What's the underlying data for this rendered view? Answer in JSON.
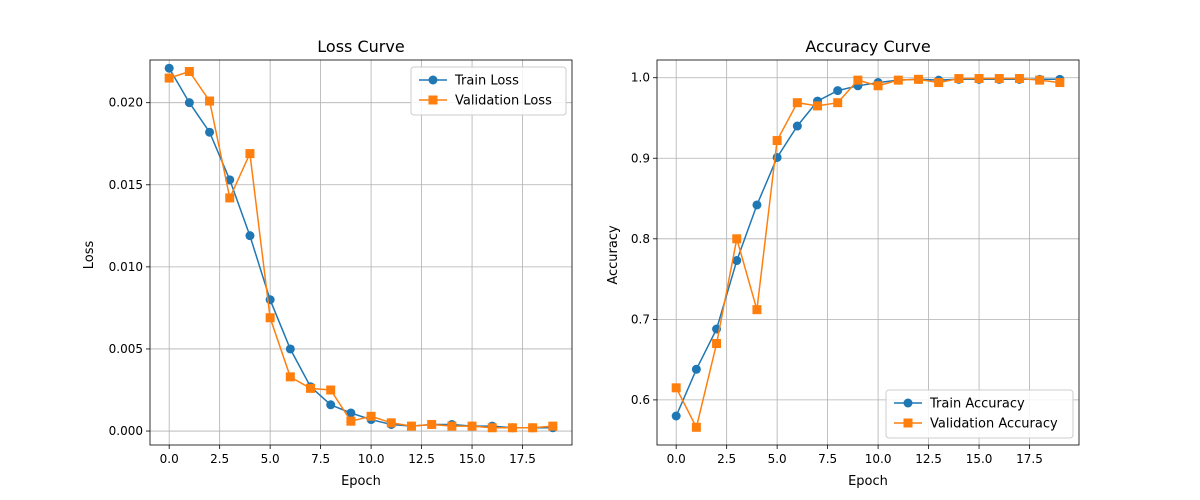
{
  "chart_data": [
    {
      "type": "line",
      "title": "Loss Curve",
      "xlabel": "Epoch",
      "ylabel": "Loss",
      "xlim": [
        -0.95,
        19.95
      ],
      "ylim": [
        -0.00085,
        0.0226
      ],
      "xticks": [
        0,
        2.5,
        5,
        7.5,
        10,
        12.5,
        15,
        17.5
      ],
      "xtick_labels": [
        "0.0",
        "2.5",
        "5.0",
        "7.5",
        "10.0",
        "12.5",
        "15.0",
        "17.5"
      ],
      "yticks": [
        0,
        0.005,
        0.01,
        0.015,
        0.02
      ],
      "ytick_labels": [
        "0.000",
        "0.005",
        "0.010",
        "0.015",
        "0.020"
      ],
      "grid": true,
      "legend": "upper right",
      "x": [
        0,
        1,
        2,
        3,
        4,
        5,
        6,
        7,
        8,
        9,
        10,
        11,
        12,
        13,
        14,
        15,
        16,
        17,
        18,
        19
      ],
      "series": [
        {
          "name": "Train Loss",
          "color": "#1f77b4",
          "marker": "circle",
          "values": [
            0.0221,
            0.02,
            0.0182,
            0.0153,
            0.0119,
            0.008,
            0.005,
            0.0027,
            0.0016,
            0.0011,
            0.0007,
            0.0004,
            0.0003,
            0.0004,
            0.0004,
            0.0003,
            0.0003,
            0.0002,
            0.0002,
            0.0002
          ]
        },
        {
          "name": "Validation Loss",
          "color": "#ff7f0e",
          "marker": "square",
          "values": [
            0.0215,
            0.0219,
            0.0201,
            0.0142,
            0.0169,
            0.0069,
            0.0033,
            0.0026,
            0.0025,
            0.0006,
            0.0009,
            0.0005,
            0.0003,
            0.0004,
            0.0003,
            0.0003,
            0.0002,
            0.0002,
            0.0002,
            0.0003
          ]
        }
      ]
    },
    {
      "type": "line",
      "title": "Accuracy Curve",
      "xlabel": "Epoch",
      "ylabel": "Accuracy",
      "xlim": [
        -0.95,
        19.95
      ],
      "ylim": [
        0.544,
        1.022
      ],
      "xticks": [
        0,
        2.5,
        5,
        7.5,
        10,
        12.5,
        15,
        17.5
      ],
      "xtick_labels": [
        "0.0",
        "2.5",
        "5.0",
        "7.5",
        "10.0",
        "12.5",
        "15.0",
        "17.5"
      ],
      "yticks": [
        0.6,
        0.7,
        0.8,
        0.9,
        1.0
      ],
      "ytick_labels": [
        "0.6",
        "0.7",
        "0.8",
        "0.9",
        "1.0"
      ],
      "grid": true,
      "legend": "lower right",
      "x": [
        0,
        1,
        2,
        3,
        4,
        5,
        6,
        7,
        8,
        9,
        10,
        11,
        12,
        13,
        14,
        15,
        16,
        17,
        18,
        19
      ],
      "series": [
        {
          "name": "Train Accuracy",
          "color": "#1f77b4",
          "marker": "circle",
          "values": [
            0.58,
            0.638,
            0.688,
            0.773,
            0.842,
            0.901,
            0.94,
            0.971,
            0.984,
            0.99,
            0.994,
            0.997,
            0.998,
            0.997,
            0.998,
            0.998,
            0.998,
            0.998,
            0.998,
            0.998
          ]
        },
        {
          "name": "Validation Accuracy",
          "color": "#ff7f0e",
          "marker": "square",
          "values": [
            0.615,
            0.566,
            0.67,
            0.8,
            0.712,
            0.922,
            0.969,
            0.965,
            0.969,
            0.997,
            0.99,
            0.997,
            0.998,
            0.994,
            0.999,
            0.999,
            0.999,
            0.999,
            0.997,
            0.994
          ]
        }
      ]
    }
  ]
}
